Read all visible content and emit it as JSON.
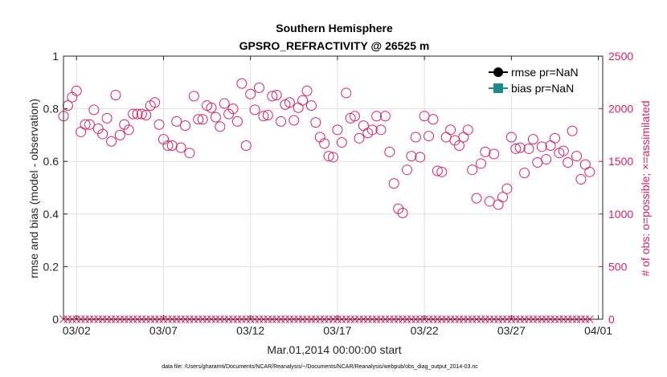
{
  "chart_data": {
    "type": "scatter",
    "title": "Southern Hemisphere",
    "subtitle": "GPSRO_REFRACTIVITY @ 26525 m",
    "xlabel": "Mar.01,2014 00:00:00 start",
    "ylabel_left": "rmse and bias (model - observation)",
    "ylabel_right": "# of obs: o=possible; ×=assimilated",
    "footnote": "data file: /Users/gharamti/Documents/NCAR/Reanalysis/~/Documents/NCAR/Reanalysis/webpub/obs_diag_output_2014-03.nc",
    "x_ticks": [
      "03/02",
      "03/07",
      "03/12",
      "03/17",
      "03/22",
      "03/27",
      "04/01"
    ],
    "x_tick_days": [
      1,
      6,
      11,
      16,
      21,
      26,
      31
    ],
    "xlim_days": [
      0.25,
      31.25
    ],
    "ylim_left": [
      0,
      1
    ],
    "yticks_left": [
      "0",
      "0.2",
      "0.4",
      "0.6",
      "0.8",
      "1"
    ],
    "ylim_right": [
      0,
      2500
    ],
    "yticks_right": [
      "0",
      "500",
      "1000",
      "1500",
      "2000",
      "2500"
    ],
    "grid": true,
    "legend_position": "top-right",
    "legend": [
      {
        "name": "rmse pr=NaN",
        "color": "#000000",
        "marker": "circle"
      },
      {
        "name": "bias pr=NaN",
        "color": "#1a8c8c",
        "marker": "square"
      }
    ],
    "colors": {
      "obs": "#d8245c",
      "axis": "#262626",
      "grid": "#e0e0e0"
    },
    "obs_possible": [
      1930,
      2030,
      2110,
      2170,
      1780,
      1850,
      1850,
      1990,
      1810,
      1760,
      1910,
      1690,
      2130,
      1750,
      1850,
      1800,
      1950,
      1950,
      1950,
      1940,
      2030,
      2060,
      1850,
      1710,
      1650,
      1650,
      1880,
      1630,
      1840,
      1580,
      2120,
      1900,
      1900,
      2030,
      2010,
      1920,
      1830,
      2050,
      1950,
      2000,
      1880,
      2240,
      1650,
      2140,
      1990,
      2200,
      1930,
      1940,
      2120,
      2130,
      1880,
      2040,
      2060,
      1890,
      2010,
      2080,
      2170,
      2030,
      1870,
      1730,
      1670,
      1550,
      1540,
      1800,
      1680,
      2150,
      1910,
      1930,
      1720,
      1840,
      1770,
      1800,
      1930,
      1800,
      1930,
      1590,
      1290,
      1050,
      1010,
      1420,
      1550,
      1730,
      1540,
      1930,
      1740,
      1900,
      1410,
      1400,
      1730,
      1800,
      1700,
      1650,
      1730,
      1800,
      1420,
      1150,
      1480,
      1590,
      1120,
      1570,
      1090,
      1160,
      1240,
      1730,
      1620,
      1630,
      1390,
      1620,
      1710,
      1490,
      1640,
      1520,
      1650,
      1720,
      1580,
      1600,
      1490,
      1790,
      1550,
      1330,
      1470,
      1400
    ],
    "obs_assimilated_value": 0
  }
}
